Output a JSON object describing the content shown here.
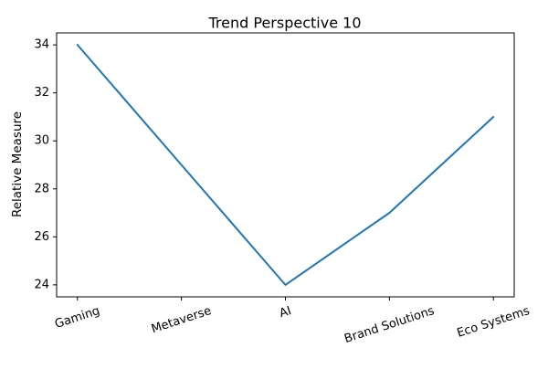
{
  "chart_data": {
    "type": "line",
    "title": "Trend Perspective 10",
    "xlabel": "",
    "ylabel": "Relative Measure",
    "categories": [
      "Gaming",
      "Metaverse",
      "AI",
      "Brand Solutions",
      "Eco Systems"
    ],
    "values": [
      34,
      29,
      24,
      27,
      31
    ],
    "yticks": [
      24,
      26,
      28,
      30,
      32,
      34
    ],
    "ylim": [
      23.5,
      34.5
    ],
    "xlim": [
      -0.2,
      4.2
    ],
    "grid": false,
    "legend": "none",
    "line_color": "#1f77b4",
    "axes_color": "#000000",
    "x_tick_rotation_deg": 18
  }
}
